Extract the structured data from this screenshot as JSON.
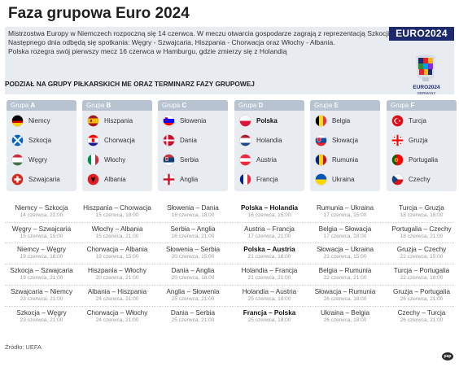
{
  "title": "Faza grupowa Euro 2024",
  "brand": "EURO2024",
  "intro_lines": [
    "Mistrzostwa Europy w Niemczech rozpoczną się 14 czerwca. W meczu otwarcia gospodarze zagrają z reprezentacją Szkocji.",
    "Następnego dnia odbędą się spotkania: Węgry - Szwajcaria, Hiszpania - Chorwacja oraz Włochy - Albania.",
    "Polska rozegra swój pierwszy mecz 16 czerwca w Hamburgu, gdzie zmierzy się z Holandią"
  ],
  "logo": {
    "name": "EURO2024",
    "sub": "GERMANY"
  },
  "section_title": "PODZIAŁ NA GRUPY PIŁKARSKICH ME ORAZ TERMINARZ FAZY GRUPOWEJ",
  "groups": [
    {
      "prefix": "Grupa ",
      "letter": "A",
      "teams": [
        {
          "name": "Niemcy",
          "flag": "germany-flag-icon"
        },
        {
          "name": "Szkocja",
          "flag": "scotland-flag-icon"
        },
        {
          "name": "Węgry",
          "flag": "hungary-flag-icon"
        },
        {
          "name": "Szwajcaria",
          "flag": "switzerland-flag-icon"
        }
      ]
    },
    {
      "prefix": "Grupa ",
      "letter": "B",
      "teams": [
        {
          "name": "Hiszpania",
          "flag": "spain-flag-icon"
        },
        {
          "name": "Chorwacja",
          "flag": "croatia-flag-icon"
        },
        {
          "name": "Włochy",
          "flag": "italy-flag-icon"
        },
        {
          "name": "Albania",
          "flag": "albania-flag-icon"
        }
      ]
    },
    {
      "prefix": "Grupa ",
      "letter": "C",
      "teams": [
        {
          "name": "Słowenia",
          "flag": "slovenia-flag-icon"
        },
        {
          "name": "Dania",
          "flag": "denmark-flag-icon"
        },
        {
          "name": "Serbia",
          "flag": "serbia-flag-icon"
        },
        {
          "name": "Anglia",
          "flag": "england-flag-icon"
        }
      ]
    },
    {
      "prefix": "Grupa ",
      "letter": "D",
      "teams": [
        {
          "name": "Polska",
          "flag": "poland-flag-icon",
          "bold": true
        },
        {
          "name": "Holandia",
          "flag": "netherlands-flag-icon"
        },
        {
          "name": "Austria",
          "flag": "austria-flag-icon"
        },
        {
          "name": "Francja",
          "flag": "france-flag-icon"
        }
      ]
    },
    {
      "prefix": "Grupa ",
      "letter": "E",
      "teams": [
        {
          "name": "Belgia",
          "flag": "belgium-flag-icon"
        },
        {
          "name": "Słowacja",
          "flag": "slovakia-flag-icon"
        },
        {
          "name": "Rumunia",
          "flag": "romania-flag-icon"
        },
        {
          "name": "Ukraina",
          "flag": "ukraine-flag-icon"
        }
      ]
    },
    {
      "prefix": "Grupa ",
      "letter": "F",
      "teams": [
        {
          "name": "Turcja",
          "flag": "turkey-flag-icon"
        },
        {
          "name": "Gruzja",
          "flag": "georgia-flag-icon"
        },
        {
          "name": "Portugalia",
          "flag": "portugal-flag-icon"
        },
        {
          "name": "Czechy",
          "flag": "czechia-flag-icon"
        }
      ]
    }
  ],
  "schedule": [
    [
      {
        "teams": "Niemcy – Szkocja",
        "date": "14 czerwca, 21:00"
      },
      {
        "teams": "Węgry – Szwajcaria",
        "date": "15 czerwca, 15:00"
      },
      {
        "teams": "Niemcy – Węgry",
        "date": "19 czerwca, 18:00"
      },
      {
        "teams": "Szkocja – Szwajcaria",
        "date": "19 czerwca, 21:00"
      },
      {
        "teams": "Szwajcaria – Niemcy",
        "date": "23 czerwca, 21:00"
      },
      {
        "teams": "Szkocja – Węgry",
        "date": "23 czerwca, 21:00"
      }
    ],
    [
      {
        "teams": "Hiszpania – Chorwacja",
        "date": "15 czerwca, 18:00"
      },
      {
        "teams": "Włochy – Albania",
        "date": "15 czerwca, 21:00"
      },
      {
        "teams": "Chorwacja – Albania",
        "date": "19 czerwca, 15:00"
      },
      {
        "teams": "Hiszpania – Włochy",
        "date": "20 czerwca, 21:00"
      },
      {
        "teams": "Albania – Hiszpania",
        "date": "24 czerwca, 21:00"
      },
      {
        "teams": "Chorwacja – Włochy",
        "date": "24 czerwca, 21:00"
      }
    ],
    [
      {
        "teams": "Słowenia – Dania",
        "date": "16 czerwca, 18:00"
      },
      {
        "teams": "Serbia – Anglia",
        "date": "16 czerwca, 21:00"
      },
      {
        "teams": "Słowenia – Serbia",
        "date": "20 czerwca, 15:00"
      },
      {
        "teams": "Dania – Anglia",
        "date": "20 czerwca, 18:00"
      },
      {
        "teams": "Anglia – Słowenia",
        "date": "25 czerwca, 21:00"
      },
      {
        "teams": "Dania – Serbia",
        "date": "25 czerwca, 21:00"
      }
    ],
    [
      {
        "teams": "Polska – Holandia",
        "date": "16 czerwca, 15:00",
        "bold": true
      },
      {
        "teams": "Austria – Francja",
        "date": "17 czerwca, 21:00"
      },
      {
        "teams": "Polska – Austria",
        "date": "21 czerwca, 18:00",
        "bold": true
      },
      {
        "teams": "Holandia – Francja",
        "date": "21 czerwca, 21:00"
      },
      {
        "teams": "Holandia – Austria",
        "date": "25 czerwca, 18:00"
      },
      {
        "teams": "Francja – Polska",
        "date": "25 czerwca, 18:00",
        "bold": true
      }
    ],
    [
      {
        "teams": "Rumunia – Ukraina",
        "date": "17 czerwca, 15:00"
      },
      {
        "teams": "Belgia – Słowacja",
        "date": "17 czerwca, 18:00"
      },
      {
        "teams": "Słowacja – Ukraina",
        "date": "21 czerwca, 15:00"
      },
      {
        "teams": "Belgia – Rumunia",
        "date": "22 czerwca, 21:00"
      },
      {
        "teams": "Słowacja – Rumunia",
        "date": "26 czerwca, 18:00"
      },
      {
        "teams": "Ukraina – Belgia",
        "date": "26 czerwca, 18:00"
      }
    ],
    [
      {
        "teams": "Turcja – Gruzja",
        "date": "18 czerwca, 18:00"
      },
      {
        "teams": "Portugalia – Czechy",
        "date": "18 czerwca, 21:00"
      },
      {
        "teams": "Gruzja – Czechy",
        "date": "22 czerwca, 15:00"
      },
      {
        "teams": "Turcja – Portugalia",
        "date": "22 czerwca, 18:00"
      },
      {
        "teams": "Gruzja – Portugalia",
        "date": "26 czerwca, 21:00"
      },
      {
        "teams": "Czechy – Turcja",
        "date": "26 czerwca, 21:00"
      }
    ]
  ],
  "source": "Źródło: UEFA",
  "credit": "pap",
  "colors": {
    "navy": "#1e2a6e",
    "panel": "#e8ecf1",
    "group_header": "#b8c3d1"
  }
}
